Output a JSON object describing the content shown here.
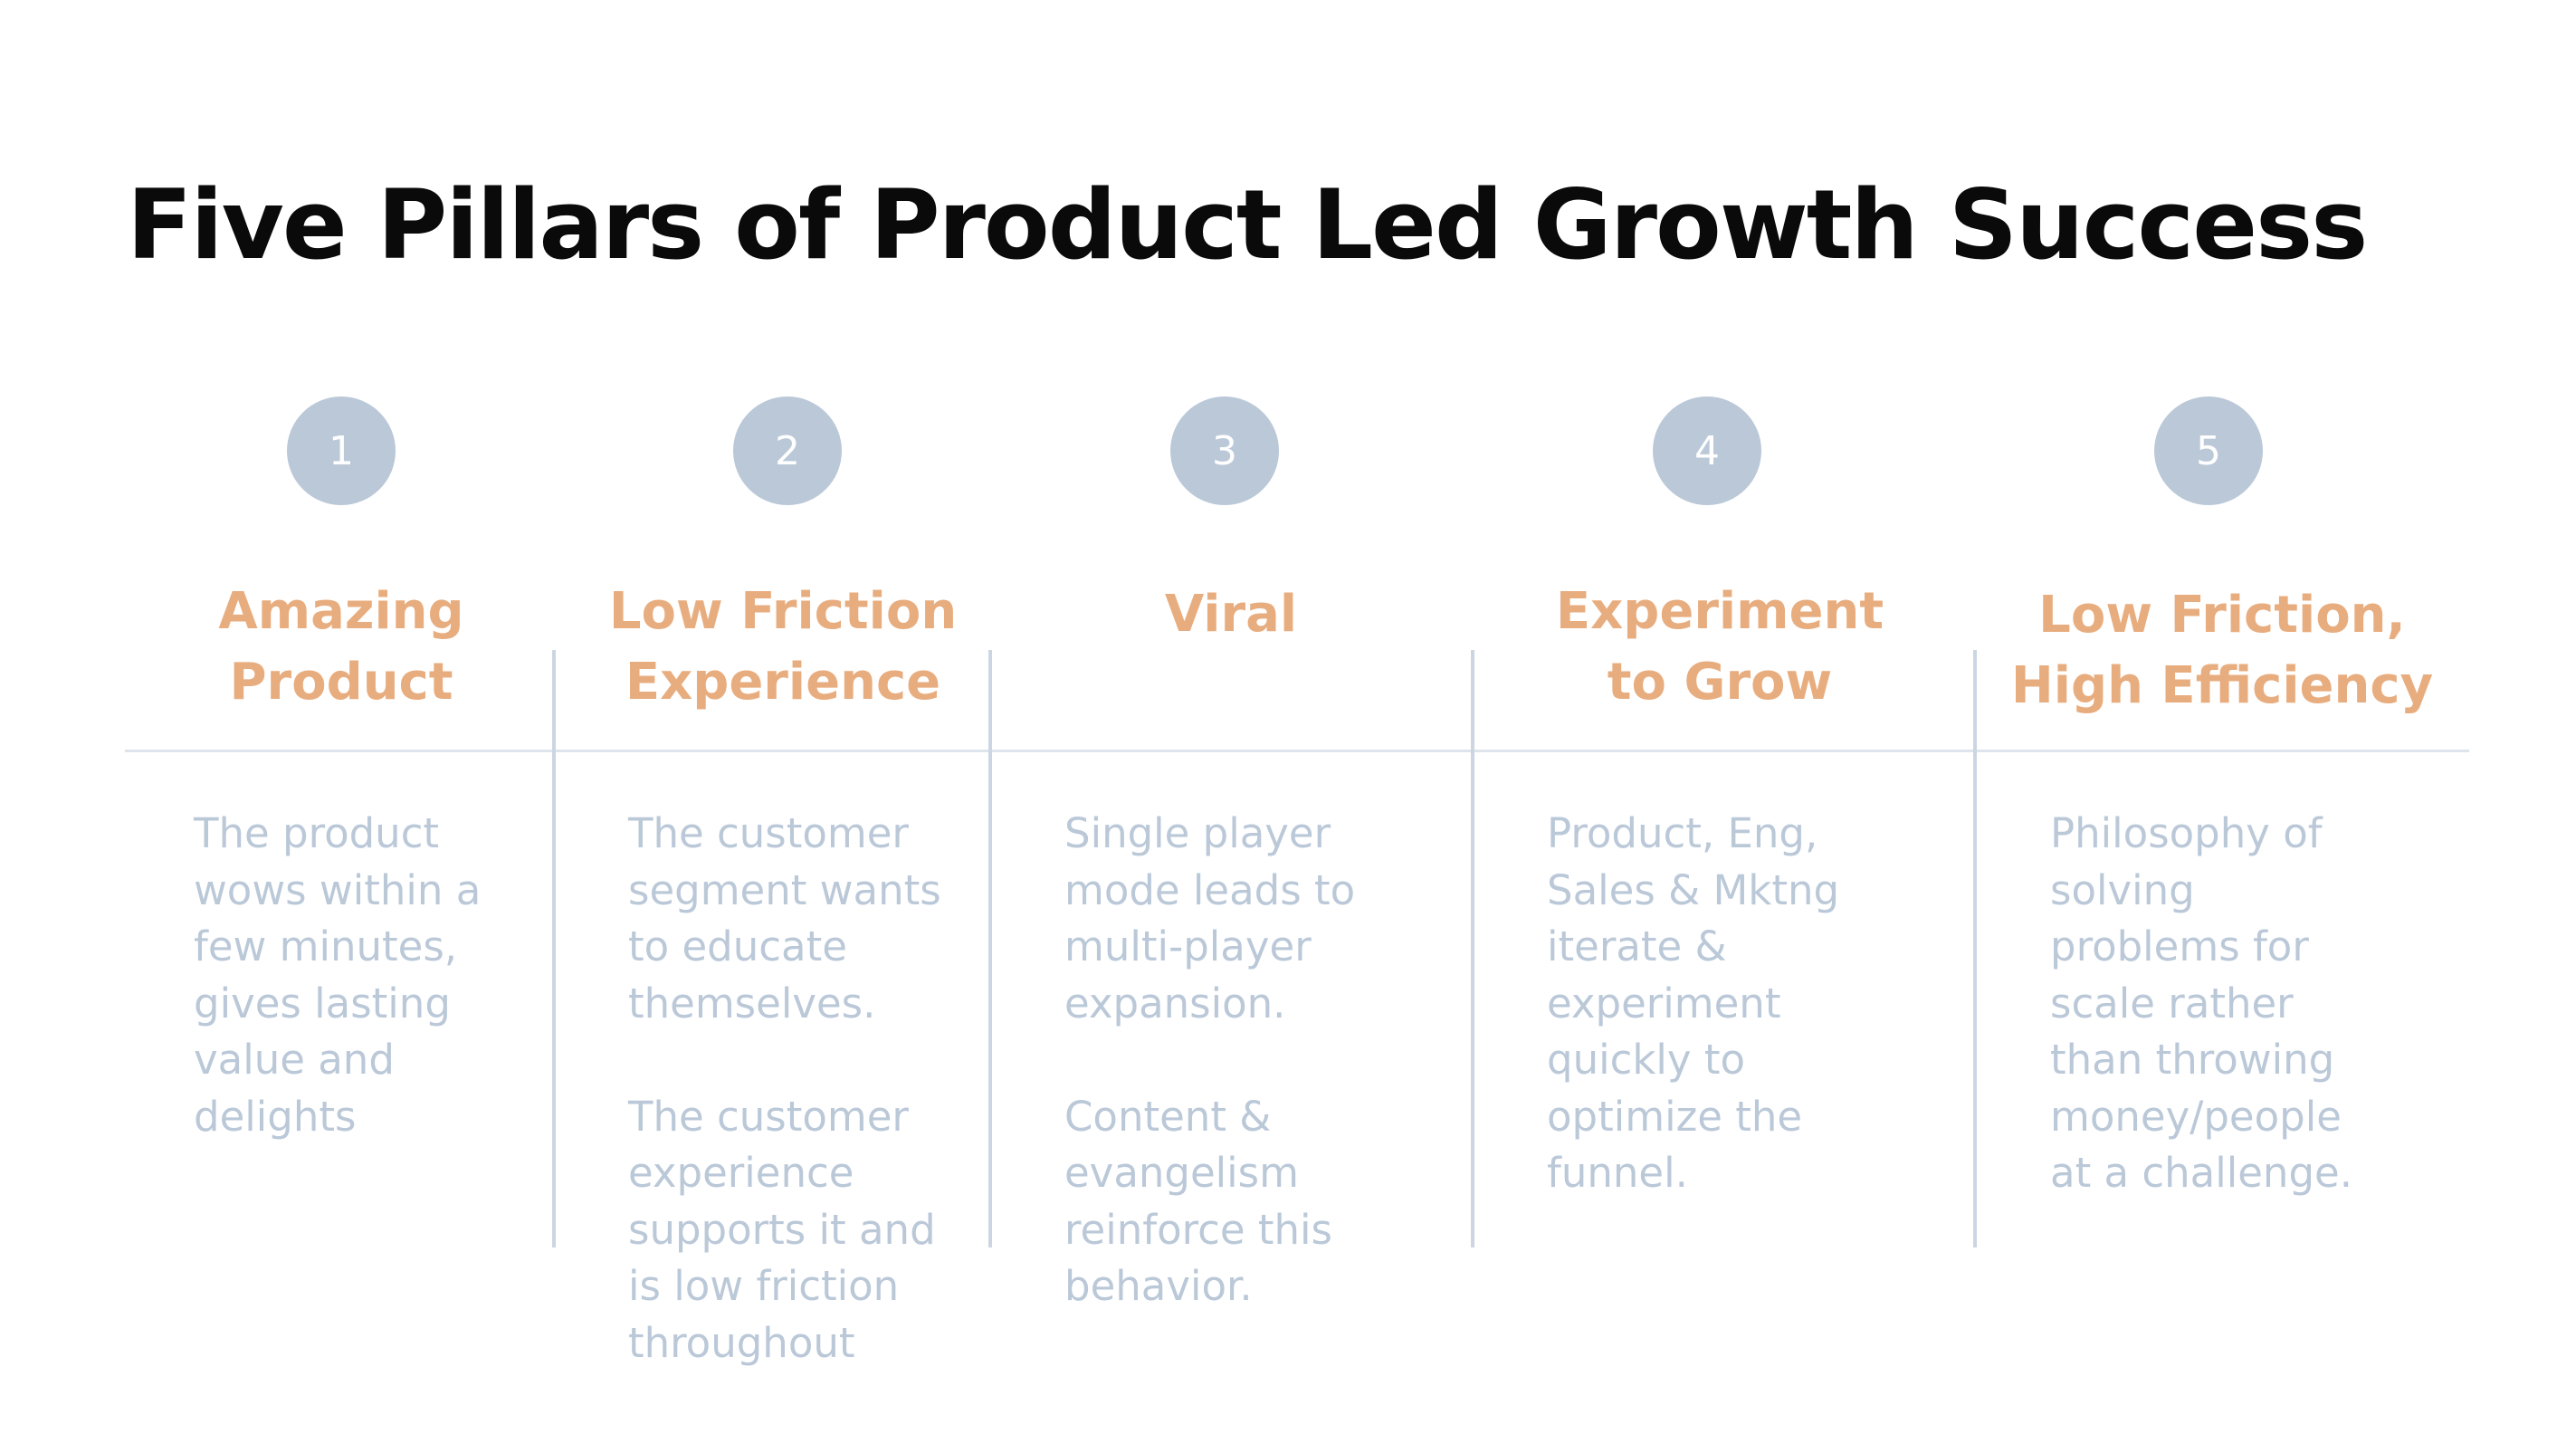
{
  "title": "Five Pillars of Product Led Growth Success",
  "colors": {
    "title": "#0a0a0a",
    "heading_accent": "#e8ad7f",
    "muted_text": "#bac8d8",
    "badge": "#bac8d8",
    "divider": "#ccd6e2"
  },
  "pillars": [
    {
      "number": "1",
      "heading": "Amazing\nProduct",
      "description": "The product\nwows within a\nfew minutes,\ngives lasting\nvalue and\ndelights"
    },
    {
      "number": "2",
      "heading": "Low Friction\nExperience",
      "description": "The customer\nsegment wants\nto educate\nthemselves.\n\nThe customer\nexperience\nsupports it and\nis low friction\nthroughout"
    },
    {
      "number": "3",
      "heading": "Viral",
      "description": "Single player\nmode leads to\nmulti-player\nexpansion.\n\nContent  &\nevangelism\nreinforce this\nbehavior."
    },
    {
      "number": "4",
      "heading": "Experiment\nto Grow",
      "description": "Product, Eng,\nSales & Mktng\niterate &\nexperiment\nquickly to\noptimize the\nfunnel."
    },
    {
      "number": "5",
      "heading": "Low Friction,\nHigh Efficiency",
      "description": "Philosophy of\nsolving\nproblems for\nscale rather\nthan throwing\nmoney/people\nat a challenge."
    }
  ]
}
